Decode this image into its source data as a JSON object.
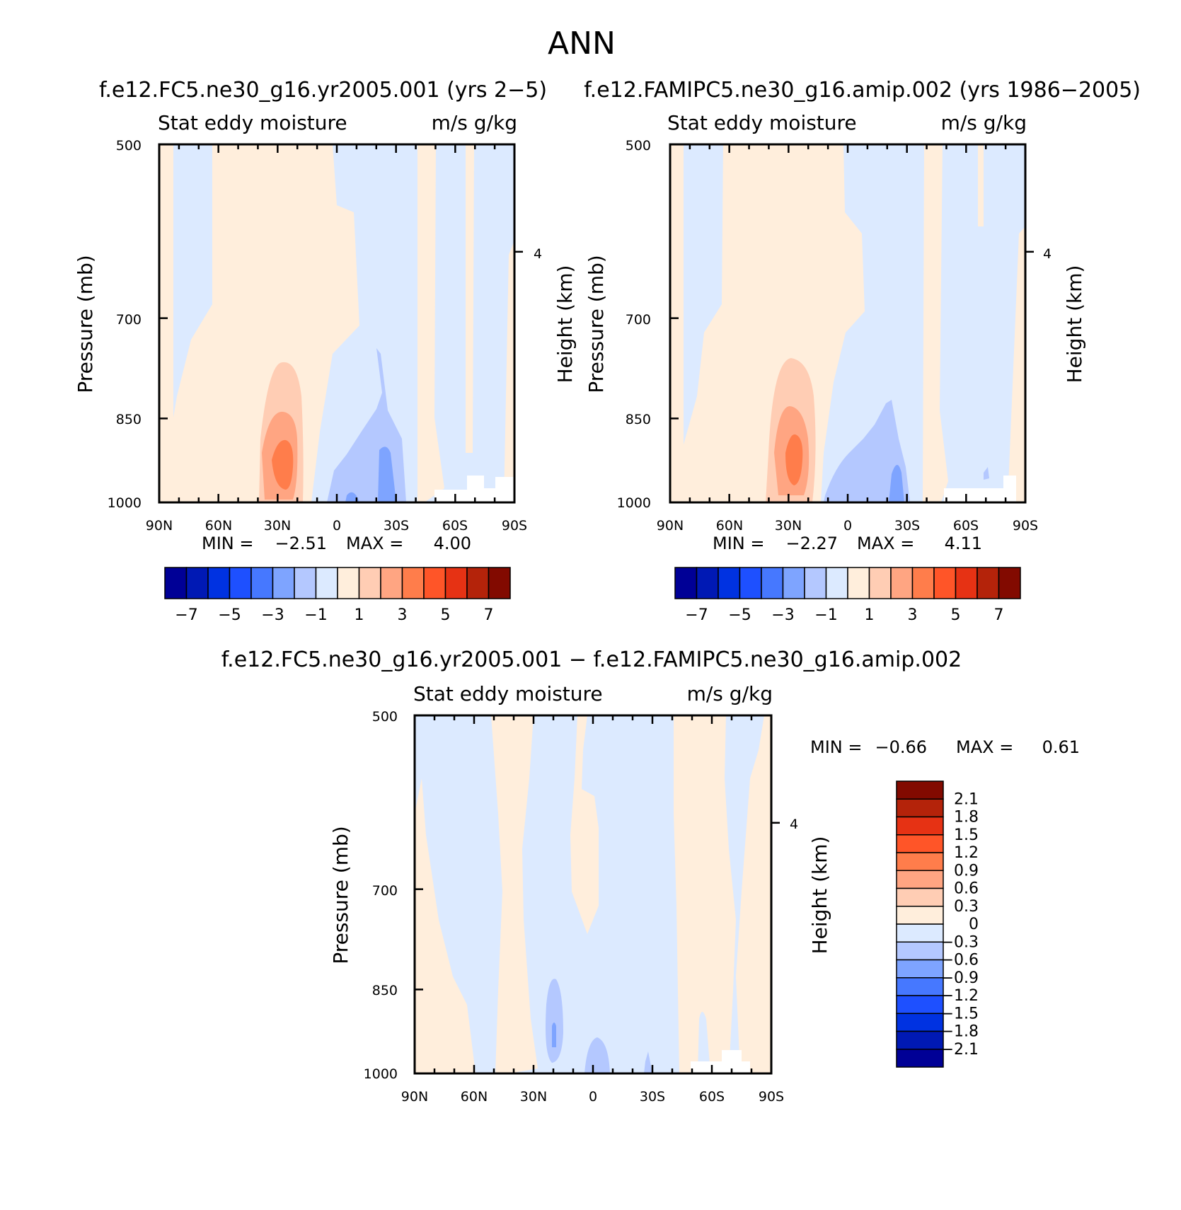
{
  "figure": {
    "title": "ANN",
    "panel_titles": [
      "f.e12.FC5.ne30_g16.yr2005.001 (yrs 2−5)",
      "f.e12.FAMIPC5.ne30_g16.amip.002 (yrs 1986−2005)",
      "f.e12.FC5.ne30_g16.yr2005.001 − f.e12.FAMIPC5.ne30_g16.amip.002"
    ]
  },
  "colors": {
    "cbar_main": [
      "#000096",
      "#0019b4",
      "#0032e1",
      "#1e50ff",
      "#4678ff",
      "#7ea4ff",
      "#b4c8ff",
      "#dceaff",
      "#ffeedc",
      "#ffcdb4",
      "#ffa582",
      "#ff7d4b",
      "#ff5528",
      "#e63214",
      "#b4230a",
      "#820a00"
    ],
    "cbar_diff": [
      "#000096",
      "#0019b4",
      "#0032e1",
      "#1e50ff",
      "#4678ff",
      "#7ea4ff",
      "#b4c8ff",
      "#dceaff",
      "#ffeedc",
      "#ffcdb4",
      "#ffa582",
      "#ff7d4b",
      "#ff5528",
      "#e63214",
      "#b4230a",
      "#820a00"
    ]
  },
  "chart_data": [
    {
      "type": "heatmap",
      "panel": "model",
      "title": "f.e12.FC5.ne30_g16.yr2005.001 (yrs 2−5)",
      "left_label": "Stat eddy moisture",
      "right_label": "m/s g/kg",
      "xlabel": "",
      "ylabel": "Pressure (mb)",
      "ylabel_right": "Height (km)",
      "x_ticks": [
        "90N",
        "60N",
        "30N",
        "0",
        "30S",
        "60S",
        "90S"
      ],
      "y_ticks": [
        "500",
        "700",
        "850",
        "1000"
      ],
      "y_right_ticks": [
        "4"
      ],
      "ylim": [
        1000,
        500
      ],
      "min_label": "MIN =",
      "min": "−2.51",
      "max_label": "MAX =",
      "max": "4.00",
      "colorbar_ticks": [
        "−7",
        "−5",
        "−3",
        "−1",
        "1",
        "3",
        "5",
        "7"
      ],
      "features": [
        {
          "lat": 30,
          "p": 930,
          "value": 4.0
        },
        {
          "lat": -30,
          "p": 960,
          "value": -2.51
        }
      ]
    },
    {
      "type": "heatmap",
      "panel": "obs",
      "title": "f.e12.FAMIPC5.ne30_g16.amip.002 (yrs 1986−2005)",
      "left_label": "Stat eddy moisture",
      "right_label": "m/s g/kg",
      "xlabel": "",
      "ylabel": "Pressure (mb)",
      "ylabel_right": "Height (km)",
      "x_ticks": [
        "90N",
        "60N",
        "30N",
        "0",
        "30S",
        "60S",
        "90S"
      ],
      "y_ticks": [
        "500",
        "700",
        "850",
        "1000"
      ],
      "y_right_ticks": [
        "4"
      ],
      "ylim": [
        1000,
        500
      ],
      "min_label": "MIN =",
      "min": "−2.27",
      "max_label": "MAX =",
      "max": "4.11",
      "colorbar_ticks": [
        "−7",
        "−5",
        "−3",
        "−1",
        "1",
        "3",
        "5",
        "7"
      ],
      "features": [
        {
          "lat": 27,
          "p": 930,
          "value": 4.11
        },
        {
          "lat": -27,
          "p": 970,
          "value": -2.27
        }
      ]
    },
    {
      "type": "heatmap",
      "panel": "difference",
      "title": "f.e12.FC5.ne30_g16.yr2005.001 − f.e12.FAMIPC5.ne30_g16.amip.002",
      "left_label": "Stat eddy moisture",
      "right_label": "m/s g/kg",
      "xlabel": "",
      "ylabel": "Pressure (mb)",
      "ylabel_right": "Height (km)",
      "x_ticks": [
        "90N",
        "60N",
        "30N",
        "0",
        "30S",
        "60S",
        "90S"
      ],
      "y_ticks": [
        "500",
        "700",
        "850",
        "1000"
      ],
      "y_right_ticks": [
        "4"
      ],
      "ylim": [
        1000,
        500
      ],
      "min_label": "MIN =",
      "min": "−0.66",
      "max_label": "MAX =",
      "max": "0.61",
      "colorbar_ticks": [
        "2.1",
        "1.8",
        "1.5",
        "1.2",
        "0.9",
        "0.6",
        "0.3",
        "0",
        "−0.3",
        "−0.6",
        "−0.9",
        "−1.2",
        "−1.5",
        "−1.8",
        "−2.1"
      ],
      "features": [
        {
          "lat": 17,
          "p": 940,
          "value": -0.66
        },
        {
          "lat": -60,
          "p": 980,
          "value": 0.61
        }
      ]
    }
  ]
}
